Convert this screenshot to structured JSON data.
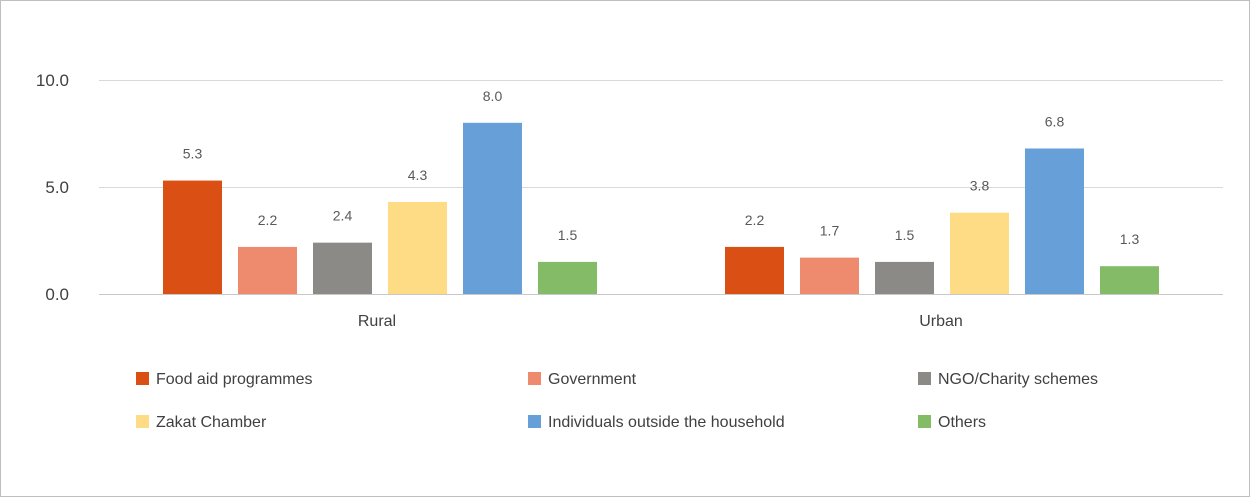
{
  "chart_data": {
    "type": "bar",
    "title": "",
    "xlabel": "",
    "ylabel": "",
    "categories": [
      "Rural",
      "Urban"
    ],
    "ylim": [
      0,
      10
    ],
    "yticks": [
      "0.0",
      "5.0",
      "10.0"
    ],
    "grid": true,
    "legend_position": "bottom",
    "series": [
      {
        "name": "Food aid programmes",
        "values": [
          5.3,
          2.2
        ],
        "labels": [
          "5.3",
          "2.2"
        ],
        "color": "#d94f14"
      },
      {
        "name": "Government",
        "values": [
          2.2,
          1.7
        ],
        "labels": [
          "2.2",
          "1.7"
        ],
        "color": "#ee8b6f"
      },
      {
        "name": "NGO/Charity schemes",
        "values": [
          2.4,
          1.5
        ],
        "labels": [
          "2.4",
          "1.5"
        ],
        "color": "#8c8a87"
      },
      {
        "name": "Zakat Chamber",
        "values": [
          4.3,
          3.8
        ],
        "labels": [
          "4.3",
          "3.8"
        ],
        "color": "#fedc86"
      },
      {
        "name": "Individuals outside the household",
        "values": [
          8.0,
          6.8
        ],
        "labels": [
          "8.0",
          "6.8"
        ],
        "color": "#679fd8"
      },
      {
        "name": "Others",
        "values": [
          1.5,
          1.3
        ],
        "labels": [
          "1.5",
          "1.3"
        ],
        "color": "#84bb66"
      }
    ]
  }
}
